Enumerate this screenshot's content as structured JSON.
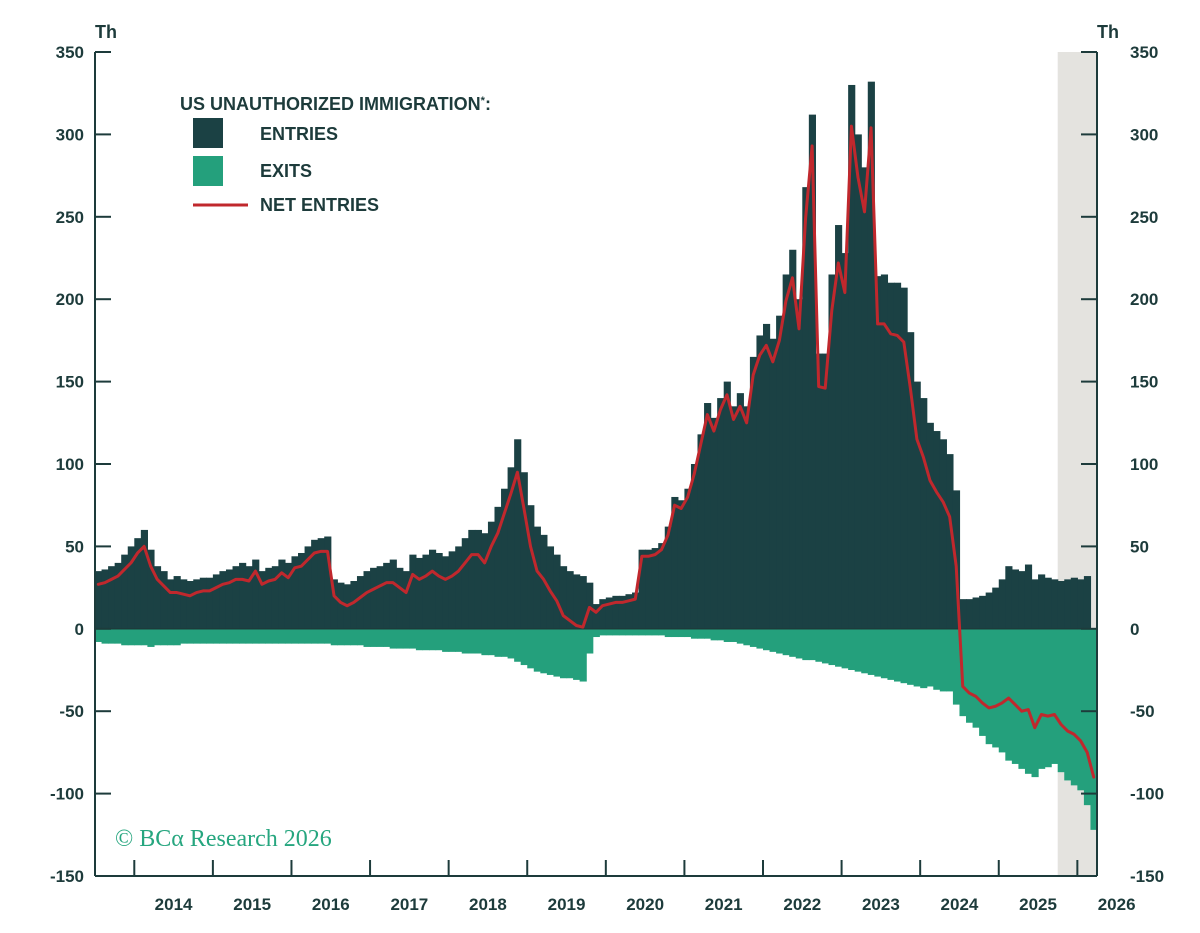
{
  "chart_data": {
    "type": "bar",
    "ylabel_left": "Th",
    "ylabel_right": "Th",
    "ylim": [
      -150,
      350
    ],
    "yticks": [
      350,
      300,
      250,
      200,
      150,
      100,
      50,
      0,
      -50,
      -100,
      -150
    ],
    "xticks": [
      "2014",
      "2015",
      "2016",
      "2017",
      "2018",
      "2019",
      "2020",
      "2021",
      "2022",
      "2023",
      "2024",
      "2025",
      "2026"
    ],
    "x_start": "2013-07",
    "x_end": "2026-04",
    "shaded_region": {
      "start": "2025-10",
      "end": "2026-04",
      "color": "#e4e3df"
    },
    "legend": {
      "title": "US UNAUTHORIZED IMMIGRATION",
      "title_marker": "*",
      "title_suffix": ":",
      "placement": "top-left",
      "items": [
        {
          "label": "ENTRIES",
          "color": "#1b4144",
          "kind": "bar"
        },
        {
          "label": "EXITS",
          "color": "#24a07c",
          "kind": "bar"
        },
        {
          "label": "NET ENTRIES",
          "color": "#c0282d",
          "kind": "line"
        }
      ]
    },
    "copyright": "© BCα Research 2026",
    "series": [
      {
        "name": "ENTRIES",
        "kind": "bar",
        "color": "#1b4144",
        "values": [
          35,
          36,
          38,
          40,
          45,
          50,
          55,
          60,
          48,
          38,
          35,
          30,
          32,
          30,
          29,
          30,
          31,
          31,
          33,
          35,
          36,
          38,
          40,
          38,
          42,
          35,
          37,
          38,
          42,
          40,
          44,
          46,
          50,
          54,
          55,
          56,
          30,
          28,
          27,
          29,
          32,
          35,
          37,
          38,
          40,
          42,
          37,
          35,
          45,
          43,
          45,
          48,
          46,
          44,
          47,
          50,
          55,
          60,
          60,
          58,
          65,
          74,
          85,
          98,
          115,
          95,
          75,
          62,
          57,
          50,
          45,
          38,
          35,
          33,
          32,
          28,
          15,
          18,
          19,
          20,
          20,
          21,
          22,
          48,
          48,
          49,
          52,
          62,
          80,
          78,
          85,
          100,
          118,
          137,
          128,
          140,
          150,
          135,
          143,
          135,
          165,
          178,
          185,
          176,
          190,
          215,
          230,
          200,
          268,
          312,
          167,
          167,
          215,
          245,
          228,
          330,
          300,
          280,
          332,
          214,
          215,
          210,
          210,
          207,
          180,
          150,
          140,
          125,
          120,
          115,
          106,
          84,
          18,
          18,
          19,
          20,
          22,
          25,
          30,
          38,
          36,
          35,
          39,
          30,
          33,
          31,
          30,
          29,
          30,
          31,
          30,
          32
        ]
      },
      {
        "name": "EXITS",
        "kind": "bar",
        "color": "#24a07c",
        "values": [
          -8,
          -9,
          -9,
          -9,
          -10,
          -10,
          -10,
          -10,
          -11,
          -10,
          -10,
          -10,
          -10,
          -9,
          -9,
          -9,
          -9,
          -9,
          -9,
          -9,
          -9,
          -9,
          -9,
          -9,
          -9,
          -9,
          -9,
          -9,
          -9,
          -9,
          -9,
          -9,
          -9,
          -9,
          -9,
          -9,
          -10,
          -10,
          -10,
          -10,
          -10,
          -11,
          -11,
          -11,
          -11,
          -12,
          -12,
          -12,
          -12,
          -13,
          -13,
          -13,
          -13,
          -14,
          -14,
          -14,
          -15,
          -15,
          -15,
          -16,
          -16,
          -17,
          -17,
          -18,
          -20,
          -22,
          -24,
          -26,
          -27,
          -28,
          -29,
          -30,
          -30,
          -31,
          -32,
          -15,
          -5,
          -4,
          -4,
          -4,
          -4,
          -4,
          -4,
          -4,
          -4,
          -4,
          -4,
          -5,
          -5,
          -5,
          -5,
          -6,
          -6,
          -6,
          -7,
          -7,
          -8,
          -8,
          -9,
          -10,
          -11,
          -12,
          -13,
          -14,
          -15,
          -16,
          -17,
          -18,
          -19,
          -19,
          -20,
          -21,
          -22,
          -23,
          -24,
          -25,
          -26,
          -27,
          -28,
          -29,
          -30,
          -31,
          -32,
          -33,
          -34,
          -35,
          -36,
          -35,
          -37,
          -38,
          -38,
          -46,
          -53,
          -57,
          -60,
          -65,
          -70,
          -72,
          -75,
          -80,
          -82,
          -85,
          -88,
          -90,
          -85,
          -84,
          -82,
          -87,
          -92,
          -95,
          -98,
          -107,
          -122
        ]
      },
      {
        "name": "NET ENTRIES",
        "kind": "line",
        "color": "#c0282d",
        "values": [
          27,
          28,
          30,
          32,
          36,
          40,
          46,
          50,
          38,
          30,
          26,
          22,
          22,
          21,
          20,
          22,
          23,
          23,
          25,
          27,
          28,
          30,
          30,
          29,
          35,
          27,
          29,
          30,
          34,
          31,
          37,
          38,
          42,
          46,
          47,
          47,
          20,
          16,
          14,
          16,
          19,
          22,
          24,
          26,
          28,
          28,
          25,
          22,
          33,
          30,
          32,
          35,
          32,
          30,
          32,
          35,
          40,
          45,
          45,
          40,
          50,
          58,
          70,
          82,
          95,
          73,
          50,
          35,
          30,
          23,
          17,
          8,
          5,
          2,
          1,
          13,
          10,
          14,
          15,
          16,
          16,
          17,
          18,
          44,
          44,
          45,
          48,
          57,
          75,
          73,
          80,
          94,
          112,
          130,
          120,
          133,
          142,
          127,
          135,
          125,
          154,
          166,
          172,
          162,
          175,
          199,
          213,
          182,
          249,
          293,
          147,
          146,
          193,
          222,
          204,
          305,
          274,
          253,
          304,
          185,
          185,
          179,
          178,
          174,
          146,
          115,
          104,
          90,
          83,
          77,
          68,
          38,
          -35,
          -39,
          -41,
          -45,
          -48,
          -47,
          -45,
          -42,
          -46,
          -50,
          -49,
          -60,
          -52,
          -53,
          -52,
          -58,
          -62,
          -64,
          -68,
          -75,
          -90
        ]
      }
    ]
  }
}
